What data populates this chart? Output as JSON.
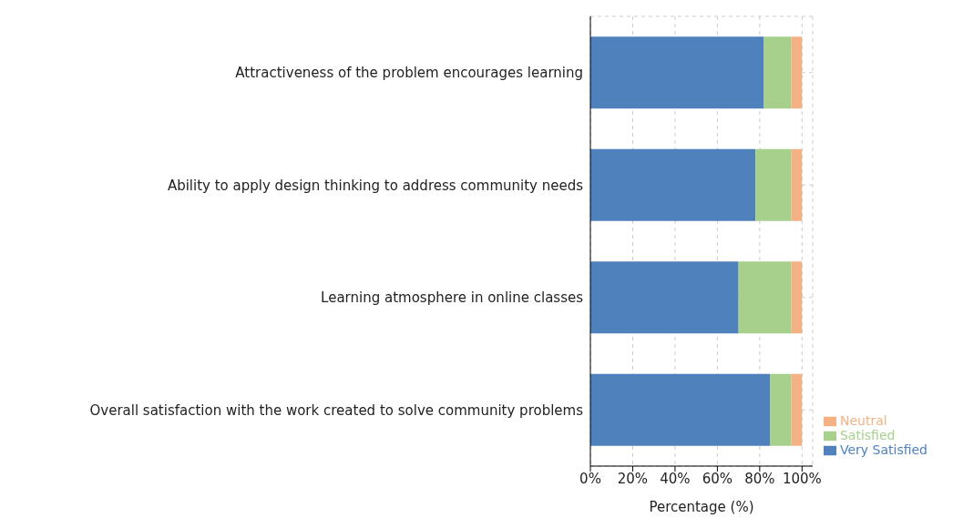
{
  "chart_data": {
    "type": "bar",
    "orientation": "horizontal",
    "stacked": true,
    "xlabel": "Percentage (%)",
    "categories": [
      "Attractiveness of the problem encourages learning",
      "Ability to apply design thinking to address community needs",
      "Learning atmosphere in online classes",
      "Overall satisfaction with the work created to solve community problems"
    ],
    "series": [
      {
        "name": "Very Satisfied",
        "color": "#4f81bd",
        "values": [
          82,
          78,
          70,
          85
        ]
      },
      {
        "name": "Satisfied",
        "color": "#a6d08c",
        "values": [
          13,
          17,
          25,
          10
        ]
      },
      {
        "name": "Neutral",
        "color": "#f4b183",
        "values": [
          5,
          5,
          5,
          5
        ]
      }
    ],
    "xlim": [
      0,
      105
    ],
    "xticks": [
      {
        "value": 0,
        "label": "0%"
      },
      {
        "value": 20,
        "label": "20%"
      },
      {
        "value": 40,
        "label": "40%"
      },
      {
        "value": 60,
        "label": "60%"
      },
      {
        "value": 80,
        "label": "80%"
      },
      {
        "value": 100,
        "label": "100%"
      }
    ],
    "grid": true,
    "legend": "bottom right"
  }
}
